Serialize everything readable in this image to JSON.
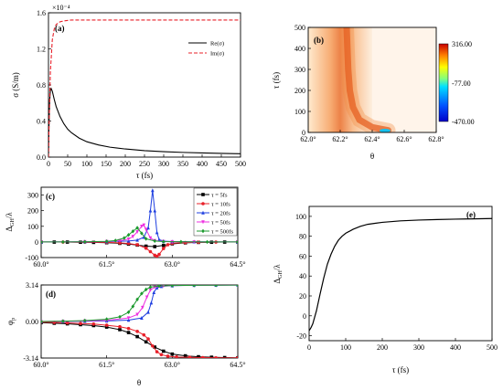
{
  "chart_data": [
    {
      "panel": "(a)",
      "type": "line",
      "xlabel": "τ (fs)",
      "ylabel": "σ (S/m)",
      "multiplier": "×10⁻⁴",
      "xlim": [
        0,
        500
      ],
      "ylim": [
        0,
        1.6
      ],
      "xticks": [
        0,
        50,
        100,
        150,
        200,
        250,
        300,
        350,
        400,
        450,
        500
      ],
      "yticks": [
        "0.0",
        "0.4",
        "0.8",
        "1.2",
        "1.6"
      ],
      "legend_position": "right",
      "series": [
        {
          "name": "Re(σ)",
          "style": "solid",
          "color": "#000000",
          "x": [
            0,
            1,
            3,
            5,
            7,
            10,
            15,
            20,
            30,
            40,
            50,
            60,
            80,
            100,
            130,
            160,
            200,
            250,
            300,
            350,
            400,
            450,
            500
          ],
          "y": [
            0,
            0.28,
            0.62,
            0.74,
            0.76,
            0.73,
            0.64,
            0.56,
            0.45,
            0.37,
            0.31,
            0.27,
            0.21,
            0.17,
            0.135,
            0.11,
            0.09,
            0.072,
            0.06,
            0.052,
            0.046,
            0.041,
            0.037
          ]
        },
        {
          "name": "Im(σ)",
          "style": "dashed",
          "color": "#e8202a",
          "x": [
            0,
            2,
            5,
            10,
            15,
            20,
            30,
            40,
            60,
            80,
            100,
            150,
            200,
            300,
            400,
            500
          ],
          "y": [
            0,
            0.45,
            0.95,
            1.3,
            1.42,
            1.47,
            1.5,
            1.51,
            1.52,
            1.52,
            1.52,
            1.52,
            1.52,
            1.52,
            1.52,
            1.52
          ]
        }
      ]
    },
    {
      "panel": "(b)",
      "type": "heatmap",
      "xlabel": "θ",
      "ylabel": "τ (fs)",
      "xlim": [
        62.0,
        62.8
      ],
      "ylim": [
        0,
        500
      ],
      "xticks": [
        "62.0°",
        "62.2°",
        "62.4°",
        "62.6°",
        "62.8°"
      ],
      "yticks": [
        "0",
        "100",
        "200",
        "300",
        "400",
        "500"
      ],
      "colorbar_ticks": [
        "316.00",
        "-77.00",
        "-470.00"
      ],
      "colorbar_range": [
        -470,
        316
      ],
      "ridge": {
        "theta": [
          62.24,
          62.245,
          62.25,
          62.26,
          62.28,
          62.32,
          62.4,
          62.5
        ],
        "tau": [
          500,
          400,
          300,
          200,
          120,
          60,
          25,
          10
        ]
      }
    },
    {
      "panel": "(c)",
      "type": "line",
      "xlabel": "",
      "ylabel": "Δ_GH/λ",
      "xlim": [
        60.0,
        64.5
      ],
      "ylim": [
        -100,
        350
      ],
      "xticks": [
        "60.0°",
        "61.5°",
        "63.0°",
        "64.5°"
      ],
      "yticks": [
        "-100",
        "0",
        "100",
        "200",
        "300"
      ],
      "legend_position": "top-right",
      "series": [
        {
          "name": "τ = 5fs",
          "color": "#000000",
          "marker": "square",
          "x": [
            60,
            60.3,
            60.6,
            60.9,
            61.2,
            61.5,
            61.8,
            62.0,
            62.2,
            62.4,
            62.6,
            62.8,
            63.0,
            63.3,
            63.6,
            63.9,
            64.2,
            64.5
          ],
          "y": [
            -1,
            -1,
            -1,
            -2,
            -3,
            -5,
            -9,
            -14,
            -20,
            -27,
            -30,
            -22,
            -12,
            -6,
            -3,
            -2,
            -1,
            -1
          ]
        },
        {
          "name": "τ = 10fs",
          "color": "#e8202a",
          "marker": "circle",
          "x": [
            60,
            60.5,
            61,
            61.5,
            61.8,
            62.0,
            62.2,
            62.4,
            62.5,
            62.6,
            62.65,
            62.7,
            62.8,
            62.9,
            63.0,
            63.3,
            63.6,
            64.0,
            64.5
          ],
          "y": [
            -1,
            -1,
            -2,
            -3,
            -6,
            -10,
            -18,
            -40,
            -62,
            -85,
            -92,
            -80,
            -42,
            -18,
            -9,
            -4,
            -2,
            -1,
            -1
          ]
        },
        {
          "name": "τ = 20fs",
          "color": "#1f3fe0",
          "marker": "triangle",
          "x": [
            60,
            61,
            61.5,
            62.0,
            62.2,
            62.35,
            62.45,
            62.5,
            62.55,
            62.6,
            62.65,
            62.7,
            62.8,
            63.0,
            63.5,
            64.5
          ],
          "y": [
            0,
            1,
            2,
            6,
            12,
            30,
            90,
            200,
            330,
            200,
            60,
            15,
            5,
            2,
            1,
            0
          ]
        },
        {
          "name": "τ = 50fs",
          "color": "#ee2fe0",
          "marker": "triangle-down",
          "x": [
            60,
            61,
            61.5,
            61.8,
            62.0,
            62.1,
            62.2,
            62.3,
            62.35,
            62.4,
            62.5,
            62.6,
            62.8,
            63.0,
            63.5,
            64.5
          ],
          "y": [
            0,
            1,
            3,
            8,
            18,
            35,
            65,
            100,
            108,
            80,
            25,
            8,
            3,
            1,
            0,
            0
          ]
        },
        {
          "name": "τ = 500fs",
          "color": "#1d9a2f",
          "marker": "diamond",
          "x": [
            60,
            60.5,
            61,
            61.5,
            61.7,
            61.9,
            62.0,
            62.1,
            62.2,
            62.3,
            62.4,
            62.6,
            62.8,
            63.2,
            63.8,
            64.5
          ],
          "y": [
            0,
            0,
            1,
            4,
            9,
            25,
            45,
            68,
            90,
            55,
            20,
            6,
            2,
            1,
            0,
            0
          ]
        }
      ]
    },
    {
      "panel": "(d)",
      "type": "line",
      "xlabel": "θ",
      "ylabel": "φ_p",
      "xlim": [
        60.0,
        64.5
      ],
      "ylim": [
        -3.14,
        3.14
      ],
      "xticks": [
        "60.0°",
        "61.5°",
        "63.0°",
        "64.5°"
      ],
      "yticks": [
        "-3.14",
        "0.00",
        "3.14"
      ],
      "series": [
        {
          "name": "τ = 5fs",
          "color": "#000000",
          "marker": "square",
          "x": [
            60,
            60.3,
            60.6,
            60.9,
            61.2,
            61.5,
            61.8,
            62.0,
            62.2,
            62.4,
            62.6,
            62.8,
            63.0,
            63.3,
            63.6,
            63.9,
            64.2,
            64.5
          ],
          "y": [
            -0.1,
            -0.15,
            -0.2,
            -0.27,
            -0.35,
            -0.48,
            -0.7,
            -0.95,
            -1.3,
            -1.75,
            -2.2,
            -2.55,
            -2.8,
            -2.95,
            -3.03,
            -3.07,
            -3.1,
            -3.12
          ]
        },
        {
          "name": "τ = 10fs",
          "color": "#e8202a",
          "marker": "circle",
          "x": [
            60,
            60.3,
            60.6,
            60.9,
            61.2,
            61.5,
            61.8,
            62.0,
            62.2,
            62.35,
            62.45,
            62.55,
            62.65,
            62.75,
            62.9,
            63.1,
            63.4,
            63.7,
            64.0,
            64.5
          ],
          "y": [
            -0.05,
            -0.08,
            -0.12,
            -0.17,
            -0.22,
            -0.32,
            -0.45,
            -0.6,
            -0.85,
            -1.15,
            -1.5,
            -2.1,
            -2.6,
            -2.85,
            -2.98,
            -3.05,
            -3.08,
            -3.1,
            -3.12,
            -3.13
          ]
        },
        {
          "name": "τ = 20fs",
          "color": "#1f3fe0",
          "marker": "triangle",
          "x": [
            60,
            60.5,
            61,
            61.5,
            62.0,
            62.3,
            62.45,
            62.52,
            62.58,
            62.65,
            62.75,
            63.0,
            63.5,
            64.0,
            64.5
          ],
          "y": [
            0,
            0.01,
            0.02,
            0.05,
            0.12,
            0.3,
            0.8,
            1.6,
            2.5,
            2.9,
            3.02,
            3.08,
            3.11,
            3.12,
            3.13
          ]
        },
        {
          "name": "τ = 50fs",
          "color": "#ee2fe0",
          "marker": "triangle-down",
          "x": [
            60,
            60.5,
            61,
            61.5,
            62.0,
            62.2,
            62.32,
            62.42,
            62.5,
            62.6,
            62.8,
            63.0,
            63.5,
            64.0,
            64.5
          ],
          "y": [
            0,
            0.02,
            0.05,
            0.1,
            0.3,
            0.6,
            1.2,
            2.1,
            2.7,
            2.95,
            3.05,
            3.09,
            3.11,
            3.12,
            3.13
          ]
        },
        {
          "name": "τ = 500fs",
          "color": "#1d9a2f",
          "marker": "diamond",
          "x": [
            60,
            60.5,
            61,
            61.5,
            61.8,
            62.0,
            62.1,
            62.2,
            62.3,
            62.4,
            62.5,
            62.7,
            63.0,
            63.5,
            64.0,
            64.5
          ],
          "y": [
            0,
            0.03,
            0.08,
            0.2,
            0.4,
            0.8,
            1.3,
            1.9,
            2.4,
            2.75,
            2.95,
            3.05,
            3.09,
            3.11,
            3.12,
            3.13
          ]
        }
      ]
    },
    {
      "panel": "(e)",
      "type": "line",
      "xlabel": "τ (fs)",
      "ylabel": "Δ_GH/λ",
      "xlim": [
        0,
        500
      ],
      "ylim": [
        -25,
        110
      ],
      "xticks": [
        0,
        100,
        200,
        300,
        400,
        500
      ],
      "yticks": [
        -20,
        0,
        20,
        40,
        60,
        80,
        100
      ],
      "series": [
        {
          "name": "",
          "color": "#000000",
          "style": "solid",
          "x": [
            0,
            5,
            10,
            20,
            30,
            40,
            50,
            60,
            70,
            80,
            90,
            100,
            120,
            140,
            160,
            180,
            200,
            250,
            300,
            350,
            400,
            450,
            500
          ],
          "y": [
            -15,
            -12,
            -8,
            5,
            22,
            38,
            52,
            62,
            70,
            76,
            80,
            83,
            87,
            90,
            92,
            93,
            94,
            95.5,
            96.3,
            96.8,
            97.2,
            97.5,
            97.8
          ]
        }
      ]
    }
  ]
}
